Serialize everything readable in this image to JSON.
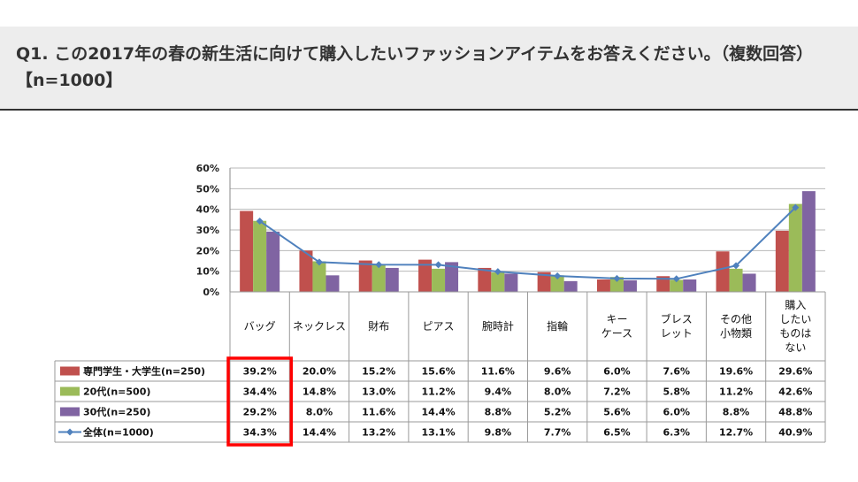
{
  "question": "Q1. この2017年の春の新生活に向けて購入したいファッションアイテムをお答えください。（複数回答）【n=1000】",
  "chart_data": {
    "type": "bar",
    "categories": [
      [
        "バッグ"
      ],
      [
        "ネックレス"
      ],
      [
        "財布"
      ],
      [
        "ピアス"
      ],
      [
        "腕時計"
      ],
      [
        "指輪"
      ],
      [
        "キー",
        "ケース"
      ],
      [
        "ブレス",
        "レット"
      ],
      [
        "その他",
        "小物類"
      ],
      [
        "購入",
        "したい",
        "ものは",
        "ない"
      ]
    ],
    "series": [
      {
        "name": "専門学生・大学生(n=250)",
        "type": "bar",
        "color": "#c0504d",
        "values": [
          39.2,
          20.0,
          15.2,
          15.6,
          11.6,
          9.6,
          6.0,
          7.6,
          19.6,
          29.6
        ],
        "labels": [
          "39.2%",
          "20.0%",
          "15.2%",
          "15.6%",
          "11.6%",
          "9.6%",
          "6.0%",
          "7.6%",
          "19.6%",
          "29.6%"
        ]
      },
      {
        "name": "20代(n=500)",
        "type": "bar",
        "color": "#9bbb59",
        "values": [
          34.4,
          14.8,
          13.0,
          11.2,
          9.4,
          8.0,
          7.2,
          5.8,
          11.2,
          42.6
        ],
        "labels": [
          "34.4%",
          "14.8%",
          "13.0%",
          "11.2%",
          "9.4%",
          "8.0%",
          "7.2%",
          "5.8%",
          "11.2%",
          "42.6%"
        ]
      },
      {
        "name": "30代(n=250)",
        "type": "bar",
        "color": "#8064a2",
        "values": [
          29.2,
          8.0,
          11.6,
          14.4,
          8.8,
          5.2,
          5.6,
          6.0,
          8.8,
          48.8
        ],
        "labels": [
          "29.2%",
          "8.0%",
          "11.6%",
          "14.4%",
          "8.8%",
          "5.2%",
          "5.6%",
          "6.0%",
          "8.8%",
          "48.8%"
        ]
      },
      {
        "name": "全体(n=1000)",
        "type": "line",
        "color": "#4f81bd",
        "values": [
          34.3,
          14.4,
          13.2,
          13.1,
          9.8,
          7.7,
          6.5,
          6.3,
          12.7,
          40.9
        ],
        "labels": [
          "34.3%",
          "14.4%",
          "13.2%",
          "13.1%",
          "9.8%",
          "7.7%",
          "6.5%",
          "6.3%",
          "12.7%",
          "40.9%"
        ]
      }
    ],
    "yticks": [
      "60%",
      "50%",
      "40%",
      "30%",
      "20%",
      "10%",
      "0%"
    ],
    "ylim": [
      0,
      60
    ],
    "grid": true,
    "legend": "data-table",
    "highlight": {
      "category_index": 0,
      "color": "#ff0000"
    }
  }
}
